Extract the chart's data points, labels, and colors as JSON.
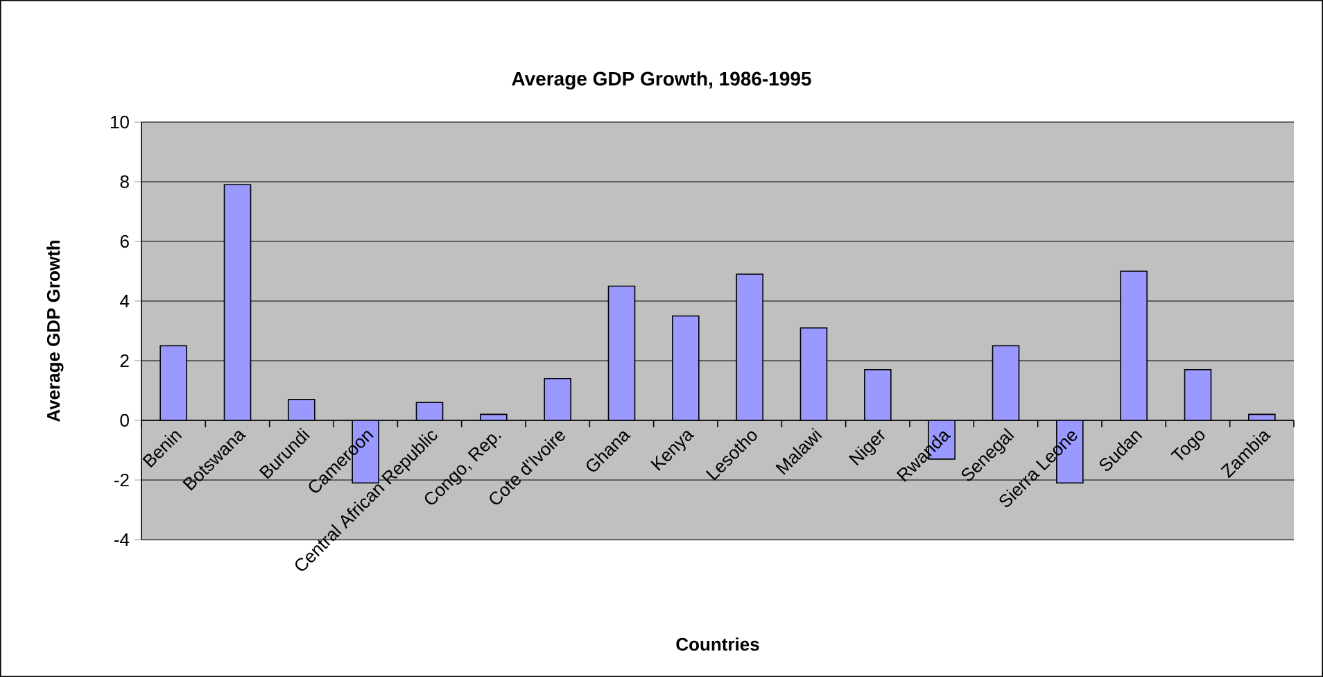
{
  "chart_data": {
    "type": "bar",
    "title": "Average GDP Growth, 1986-1995",
    "xlabel": "Countries",
    "ylabel": "Average GDP Growth",
    "categories": [
      "Benin",
      "Botswana",
      "Burundi",
      "Cameroon",
      "Central African Republic",
      "Congo, Rep.",
      "Cote d'Ivoire",
      "Ghana",
      "Kenya",
      "Lesotho",
      "Malawi",
      "Niger",
      "Rwanda",
      "Senegal",
      "Sierra Leone",
      "Sudan",
      "Togo",
      "Zambia"
    ],
    "values": [
      2.5,
      7.9,
      0.7,
      -2.1,
      0.6,
      0.2,
      1.4,
      4.5,
      3.5,
      4.9,
      3.1,
      1.7,
      -1.3,
      2.5,
      -2.1,
      5.0,
      1.7,
      0.2
    ],
    "color": "#9999ff",
    "ylim": [
      -4,
      10
    ],
    "yticks": [
      -4,
      -2,
      0,
      2,
      4,
      6,
      8,
      10
    ],
    "grid": "y"
  }
}
